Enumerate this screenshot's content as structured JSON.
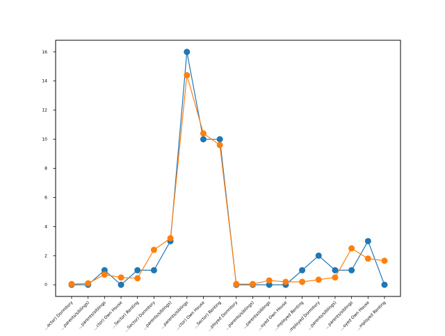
{
  "chart_data": {
    "type": "line",
    "categories": [
      "…ector) Dormitory",
      "…parents/siblings)",
      "…parents/siblings",
      "…ctor) Own House",
      "…Sector) Renting",
      "…Sector) Dormitory",
      "…parents/siblings)",
      "…parents/siblings",
      "…ctor) Own House",
      "…Sector) Renting",
      "…ployed Dormitory",
      "…parents/siblings)",
      "…parents/siblings",
      "…oyed Own House",
      "…mployed Renting",
      "…mployed Dormitory",
      "…parents/siblings)",
      "…parents/siblings",
      "…oyed Own House",
      "…mployed Renting"
    ],
    "series": [
      {
        "values": [
          0,
          0,
          1,
          0,
          1,
          1,
          3,
          16,
          10,
          10,
          0,
          0,
          0,
          0,
          1,
          2,
          1,
          1,
          3,
          0
        ],
        "color": "#1f77b4"
      },
      {
        "values": [
          0.05,
          0.1,
          0.7,
          0.5,
          0.45,
          2.4,
          3.2,
          14.4,
          10.4,
          9.6,
          0.05,
          0.05,
          0.3,
          0.2,
          0.2,
          0.35,
          0.5,
          2.5,
          1.8,
          1.65
        ],
        "color": "#ff7f0e"
      }
    ],
    "y_ticks": [
      0,
      2,
      4,
      6,
      8,
      10,
      12,
      14,
      16
    ],
    "ylim": [
      -0.8,
      16.8
    ],
    "grid": false,
    "title": "",
    "xlabel": "",
    "ylabel": ""
  }
}
